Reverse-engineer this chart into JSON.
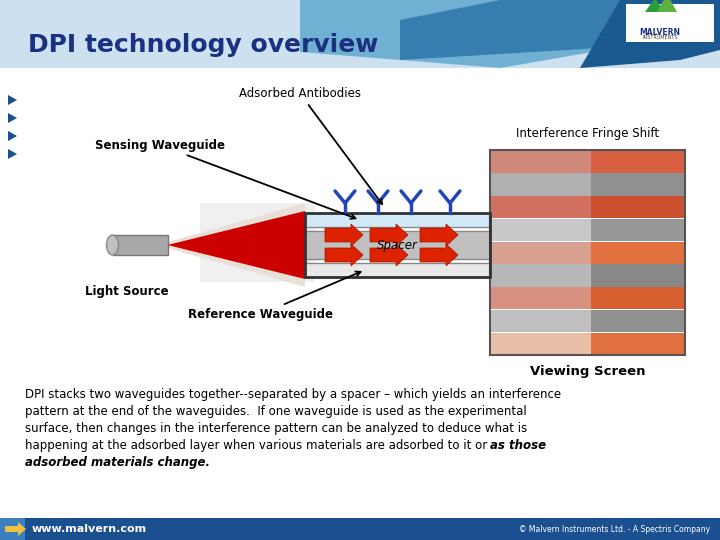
{
  "title": "DPI technology overview",
  "title_color": "#1a3080",
  "title_fontsize": 18,
  "bg_color": "#f0f0f0",
  "footer_bg": "#1a5090",
  "footer_text": "www.malvern.com",
  "footer_right": "© Malvern Instruments Ltd. - A Spectris Company",
  "body_line1": "DPI stacks two waveguides together--separated by a spacer – which yields an interference",
  "body_line2": "pattern at the end of the waveguides.  If one waveguide is used as the experimental",
  "body_line3": "surface, then changes in the interference pattern can be analyzed to deduce what is",
  "body_line4_normal": "happening at the adsorbed layer when various materials are adsorbed to it or ",
  "body_line4_bold": "as those",
  "body_line5": "adsorbed materials change.",
  "label_adsorbed": "Adsorbed Antibodies",
  "label_interference": "Interference Fringe Shift",
  "label_sensing": "Sensing Waveguide",
  "label_light": "Light Source",
  "label_reference": "Reference Waveguide",
  "label_spacer": "Spacer",
  "label_viewing": "Viewing Screen",
  "header_blue_light": "#5ba3c9",
  "header_blue_mid": "#2e7fb5",
  "header_blue_dark": "#1a5a90",
  "bullet_color": "#1a5090"
}
